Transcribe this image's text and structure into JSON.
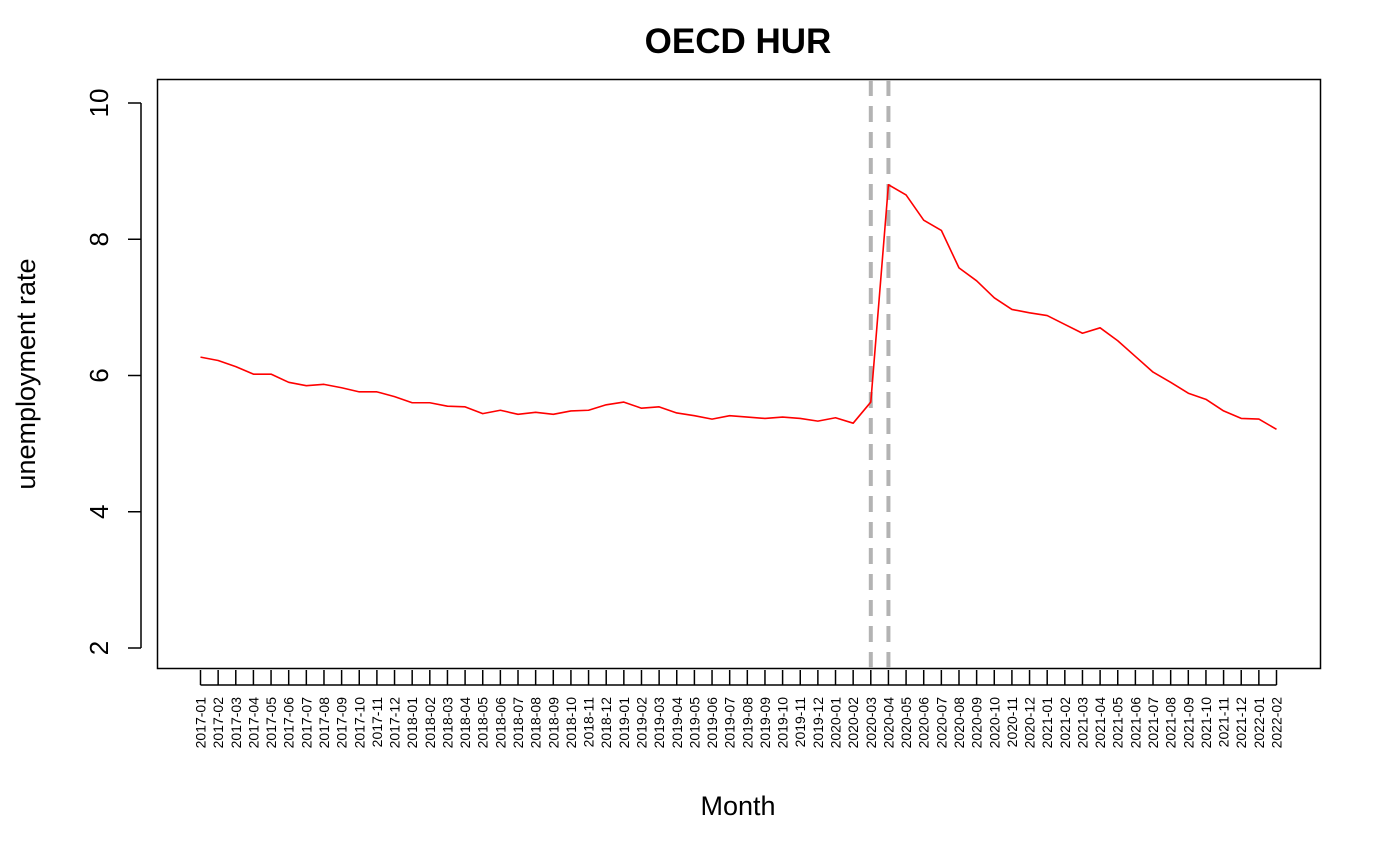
{
  "chart_data": {
    "type": "line",
    "title": "OECD HUR",
    "xlabel": "Month",
    "ylabel": "unemployment rate",
    "ylim": [
      2,
      10
    ],
    "yticks": [
      2,
      4,
      6,
      8,
      10
    ],
    "grid": false,
    "categories": [
      "2017-01",
      "2017-02",
      "2017-03",
      "2017-04",
      "2017-05",
      "2017-06",
      "2017-07",
      "2017-08",
      "2017-09",
      "2017-10",
      "2017-11",
      "2017-12",
      "2018-01",
      "2018-02",
      "2018-03",
      "2018-04",
      "2018-05",
      "2018-06",
      "2018-07",
      "2018-08",
      "2018-09",
      "2018-10",
      "2018-11",
      "2018-12",
      "2019-01",
      "2019-02",
      "2019-03",
      "2019-04",
      "2019-05",
      "2019-06",
      "2019-07",
      "2019-08",
      "2019-09",
      "2019-10",
      "2019-11",
      "2019-12",
      "2020-01",
      "2020-02",
      "2020-03",
      "2020-04",
      "2020-05",
      "2020-06",
      "2020-07",
      "2020-08",
      "2020-09",
      "2020-10",
      "2020-11",
      "2020-12",
      "2021-01",
      "2021-02",
      "2021-03",
      "2021-04",
      "2021-05",
      "2021-06",
      "2021-07",
      "2021-08",
      "2021-09",
      "2021-10",
      "2021-11",
      "2021-12",
      "2022-01",
      "2022-02"
    ],
    "series": [
      {
        "color": "#ff0000",
        "values": [
          6.27,
          6.22,
          6.13,
          6.02,
          6.02,
          5.9,
          5.85,
          5.87,
          5.82,
          5.76,
          5.76,
          5.69,
          5.6,
          5.6,
          5.55,
          5.54,
          5.44,
          5.49,
          5.43,
          5.46,
          5.43,
          5.48,
          5.49,
          5.57,
          5.61,
          5.52,
          5.54,
          5.45,
          5.41,
          5.36,
          5.41,
          5.39,
          5.37,
          5.39,
          5.37,
          5.33,
          5.38,
          5.3,
          5.61,
          8.8,
          8.65,
          8.28,
          8.13,
          7.58,
          7.39,
          7.14,
          6.97,
          6.92,
          6.88,
          6.75,
          6.62,
          6.7,
          6.51,
          6.28,
          6.05,
          5.9,
          5.74,
          5.65,
          5.48,
          5.37,
          5.36,
          5.21
        ]
      }
    ],
    "reference_lines": {
      "x": [
        "2020-03",
        "2020-04"
      ],
      "color": "#b3b3b3",
      "style": "dashed"
    }
  }
}
